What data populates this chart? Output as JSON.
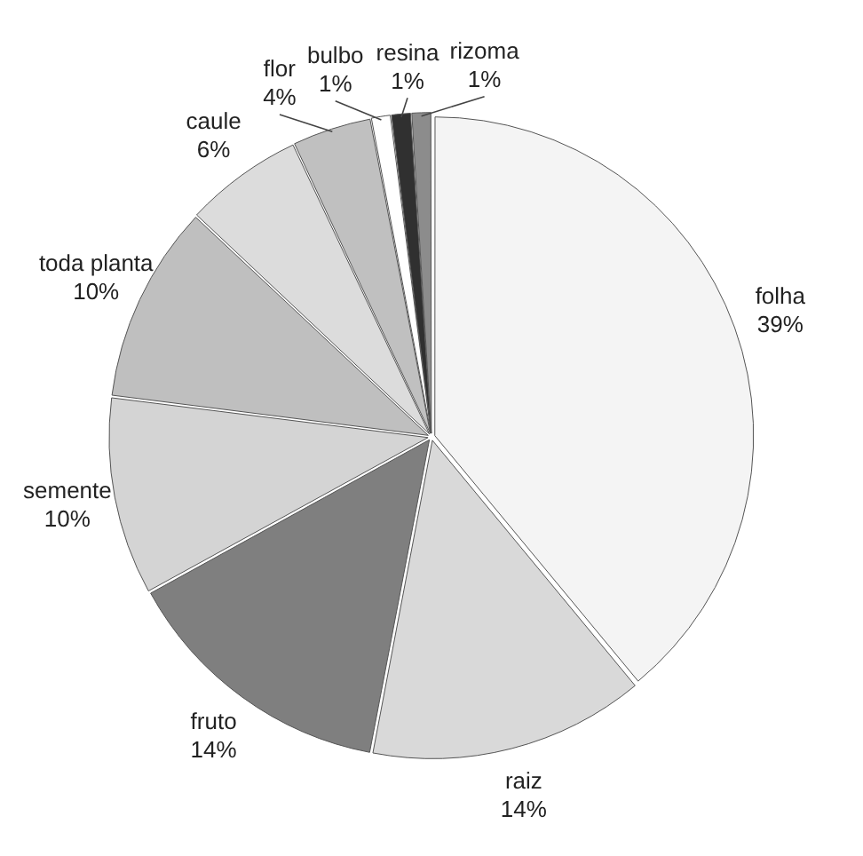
{
  "chart_data": {
    "type": "pie",
    "categories": [
      "folha",
      "raiz",
      "fruto",
      "semente",
      "toda planta",
      "caule",
      "flor",
      "bulbo",
      "resina",
      "rizoma"
    ],
    "values": [
      39,
      14,
      14,
      10,
      10,
      6,
      4,
      1,
      1,
      1
    ],
    "value_labels": [
      "39%",
      "14%",
      "14%",
      "10%",
      "10%",
      "6%",
      "4%",
      "1%",
      "1%",
      "1%"
    ],
    "colors": [
      "#f4f4f4",
      "#d9d9d9",
      "#7f7f7f",
      "#d4d4d4",
      "#bfbfbf",
      "#dcdcdc",
      "#c0c0c0",
      "#ffffff",
      "#303030",
      "#8c8c8c"
    ],
    "legend": false
  }
}
